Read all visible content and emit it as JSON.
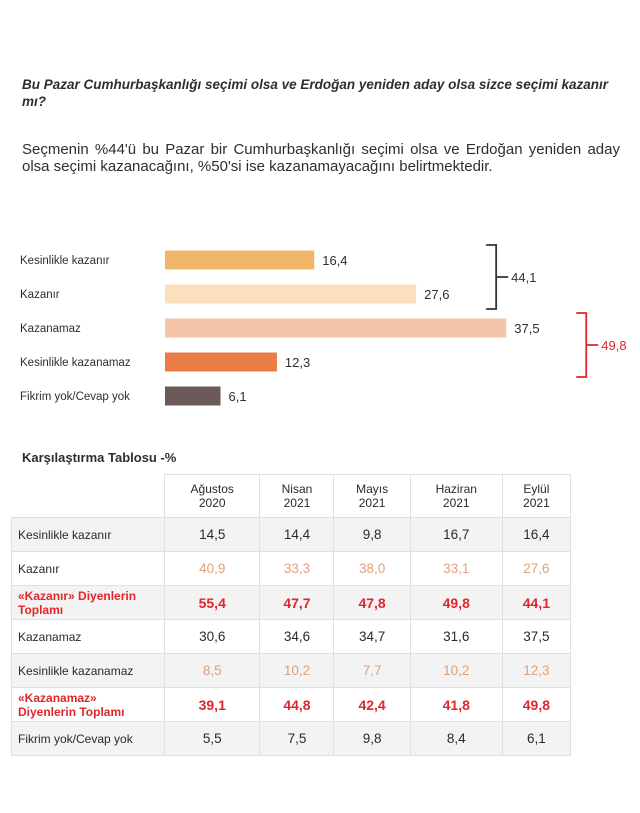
{
  "question": "Bu Pazar Cumhurbaşkanlığı seçimi olsa ve Erdoğan yeniden aday olsa sizce seçimi kazanır mı?",
  "summary": "Seçmenin %44'ü bu Pazar bir Cumhurbaşkanlığı seçimi olsa ve Erdoğan yeniden aday olsa seçimi kazanacağını, %50'si ise kazanamayacağını belirtmektedir.",
  "chart_data": [
    {
      "type": "bar",
      "orientation": "horizontal",
      "categories": [
        "Kesinlikle kazanır",
        "Kazanır",
        "Kazanamaz",
        "Kesinlikle kazanamaz",
        "Fikrim yok/Cevap yok"
      ],
      "values": [
        16.4,
        27.6,
        37.5,
        12.3,
        6.1
      ],
      "value_labels": [
        "16,4",
        "27,6",
        "37,5",
        "12,3",
        "6,1"
      ],
      "colors": [
        "#f2b66a",
        "#fbe0bd",
        "#f5c4a8",
        "#e97d45",
        "#6b5a58"
      ],
      "groups": [
        {
          "label": "44,1",
          "rows": [
            0,
            1
          ],
          "color": "#333333"
        },
        {
          "label": "49,8",
          "rows": [
            2,
            3
          ],
          "color": "#e0262c"
        }
      ]
    },
    {
      "type": "table",
      "title": "Karşılaştırma Tablosu -%",
      "columns": [
        {
          "line1": "Ağustos",
          "line2": "2020"
        },
        {
          "line1": "Nisan",
          "line2": "2021"
        },
        {
          "line1": "Mayıs",
          "line2": "2021"
        },
        {
          "line1": "Haziran",
          "line2": "2021"
        },
        {
          "line1": "Eylül",
          "line2": "2021"
        }
      ],
      "rows": [
        {
          "label": "Kesinlikle kazanır",
          "values": [
            "14,5",
            "14,4",
            "9,8",
            "16,7",
            "16,4"
          ]
        },
        {
          "label": "Kazanır",
          "values": [
            "40,9",
            "33,3",
            "38,0",
            "33,1",
            "27,6"
          ]
        },
        {
          "label": "«Kazanır» Diyenlerin Toplamı",
          "values": [
            "55,4",
            "47,7",
            "47,8",
            "49,8",
            "44,1"
          ]
        },
        {
          "label": "Kazanamaz",
          "values": [
            "30,6",
            "34,6",
            "34,7",
            "31,6",
            "37,5"
          ]
        },
        {
          "label": "Kesinlikle kazanamaz",
          "values": [
            "8,5",
            "10,2",
            "7,7",
            "10,2",
            "12,3"
          ]
        },
        {
          "label": "«Kazanamaz» Diyenlerin Toplamı",
          "values": [
            "39,1",
            "44,8",
            "42,4",
            "41,8",
            "49,8"
          ]
        },
        {
          "label": "Fikrim yok/Cevap yok",
          "values": [
            "5,5",
            "7,5",
            "9,8",
            "8,4",
            "6,1"
          ]
        }
      ]
    }
  ]
}
